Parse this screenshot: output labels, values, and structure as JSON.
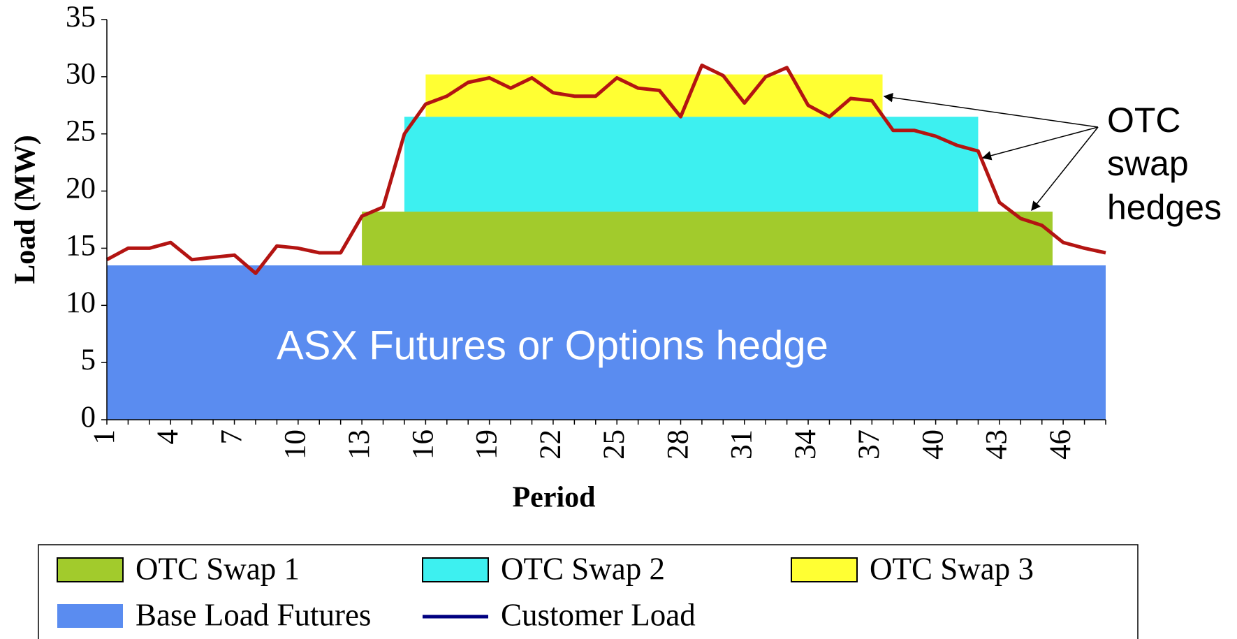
{
  "chart_data": {
    "type": "hedge-area-line",
    "x_label": "Period",
    "y_label": "Load (MW)",
    "categories": [
      1,
      null,
      null,
      4,
      null,
      null,
      7,
      null,
      null,
      10,
      null,
      null,
      13,
      null,
      null,
      16,
      null,
      null,
      19,
      null,
      null,
      22,
      null,
      null,
      25,
      null,
      null,
      28,
      null,
      null,
      31,
      null,
      null,
      34,
      null,
      null,
      37,
      null,
      null,
      40,
      null,
      null,
      43,
      null,
      null,
      46,
      null,
      null
    ],
    "ylim": [
      0,
      35
    ],
    "yticks": [
      0,
      5,
      10,
      15,
      20,
      25,
      30,
      35
    ],
    "hedges": [
      {
        "name": "Base Load Futures",
        "color": "#5a8cf0",
        "start": 1,
        "end": 48,
        "value": 13.5
      },
      {
        "name": "OTC Swap 1",
        "color": "#a2cb2c",
        "start": 13,
        "end": 45.5,
        "value": 4.7
      },
      {
        "name": "OTC Swap 2",
        "color": "#3df0f0",
        "start": 15,
        "end": 42,
        "value": 8.3
      },
      {
        "name": "OTC Swap 3",
        "color": "#ffff33",
        "start": 16,
        "end": 37.5,
        "value": 3.7
      }
    ],
    "series": [
      {
        "name": "Customer Load",
        "color": "#b31412",
        "legend_color": "#000080",
        "values": [
          14.0,
          15.0,
          15.0,
          15.5,
          14.0,
          14.2,
          14.4,
          12.8,
          15.2,
          15.0,
          14.6,
          14.6,
          17.8,
          18.6,
          25.0,
          27.6,
          28.3,
          29.5,
          29.9,
          29.0,
          29.9,
          28.6,
          28.3,
          28.3,
          29.9,
          29.0,
          28.8,
          26.5,
          31.0,
          30.1,
          27.7,
          30.0,
          30.8,
          27.5,
          26.5,
          28.1,
          27.9,
          25.3,
          25.3,
          24.8,
          24.0,
          23.5,
          19.0,
          17.6,
          17.0,
          15.5,
          15.0,
          14.6
        ]
      }
    ],
    "legend_order": [
      "OTC Swap 1",
      "OTC Swap 2",
      "OTC Swap 3",
      "Base Load Futures",
      "Customer Load"
    ],
    "annotations": [
      "ASX Futures or Options hedge",
      "OTC",
      "swap",
      "hedges"
    ]
  }
}
